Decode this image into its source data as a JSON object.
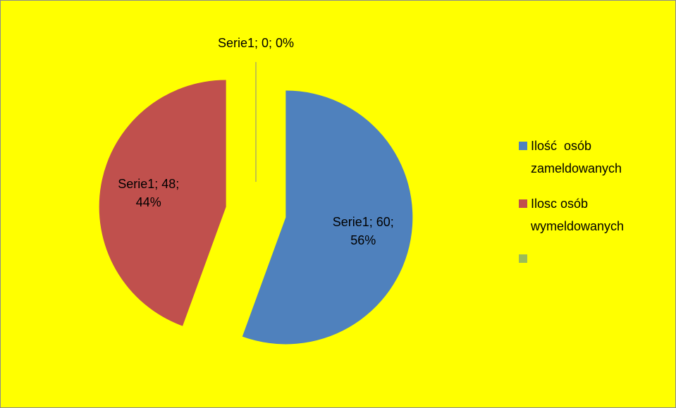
{
  "chart_data": {
    "type": "pie",
    "categories": [
      "Ilość  osób zameldowanych",
      "Ilosc osób wymeldowanych",
      null
    ],
    "values": [
      60,
      48,
      0
    ],
    "value_labels": [
      "Serie1; 60; 56%",
      "Serie1; 48; 44%",
      "Serie1; 0; 0%"
    ],
    "colors": [
      "#4f81bd",
      "#c0504d",
      "#9bbb59"
    ],
    "legend": "right"
  }
}
